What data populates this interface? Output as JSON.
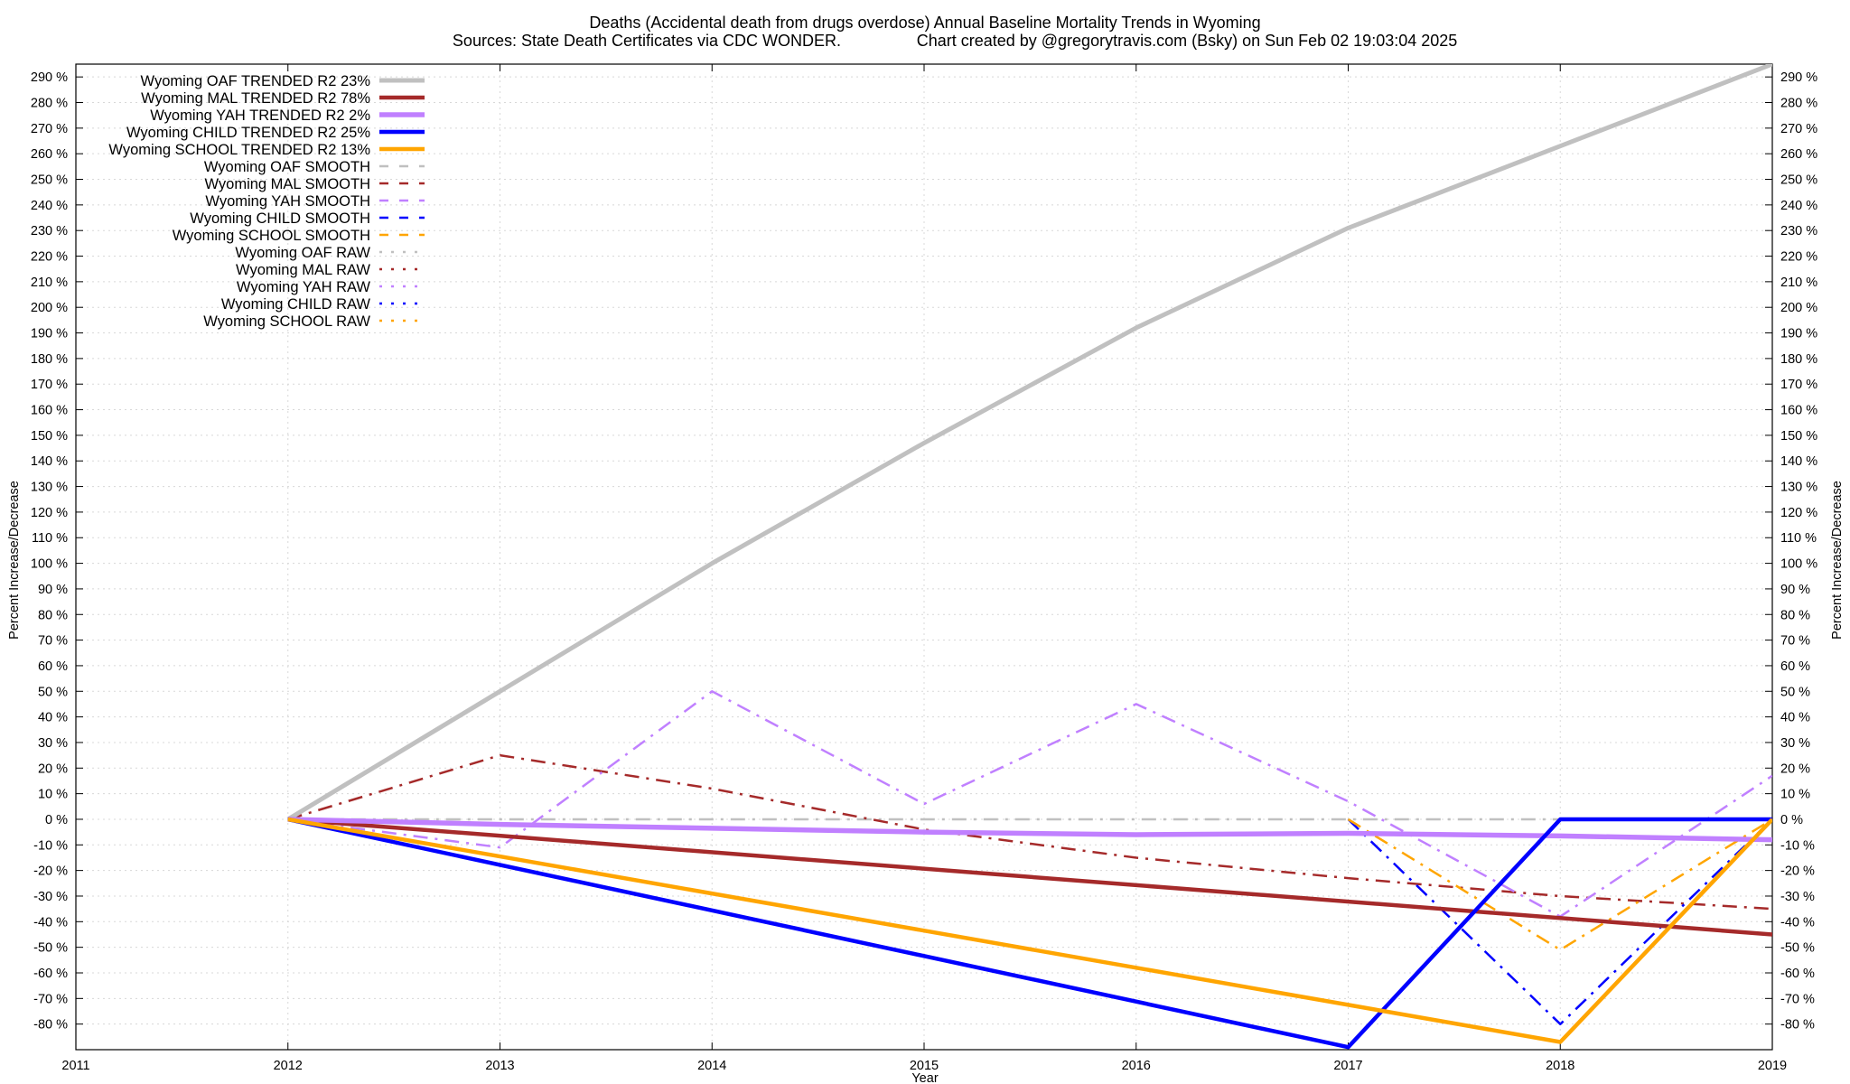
{
  "chart_data": {
    "type": "line",
    "title": "Deaths (Accidental death from drugs overdose)  Annual Baseline Mortality Trends in Wyoming",
    "subtitle_left": "Sources: State Death Certificates via CDC WONDER.",
    "subtitle_right": "Chart created by @gregorytravis.com (Bsky) on Sun Feb 02 19:03:04 2025",
    "xlabel": "Year",
    "ylabel": "Percent Increase/Decrease",
    "y2label": "Percent Increase/Decrease",
    "xlim": [
      2011,
      2019
    ],
    "ylim": [
      -90,
      295
    ],
    "x_ticks": [
      "2011",
      "2012",
      "2013",
      "2014",
      "2015",
      "2016",
      "2017",
      "2018",
      "2019"
    ],
    "y_ticks": [
      290,
      280,
      270,
      260,
      250,
      240,
      230,
      220,
      210,
      200,
      190,
      180,
      170,
      160,
      150,
      140,
      130,
      120,
      110,
      100,
      90,
      80,
      70,
      60,
      50,
      40,
      30,
      20,
      10,
      0,
      -10,
      -20,
      -30,
      -40,
      -50,
      -60,
      -70,
      -80
    ],
    "y_tick_suffix": " %",
    "grid": true,
    "legend_position": "top-left",
    "series": [
      {
        "name": "Wyoming OAF TRENDED R2  23%",
        "style": "solid",
        "color": "#c0c0c0",
        "width": 5,
        "x": [
          2012,
          2013,
          2014,
          2015,
          2016,
          2017,
          2018,
          2019
        ],
        "y": [
          0,
          50,
          100,
          147,
          192,
          231,
          263,
          295
        ]
      },
      {
        "name": "Wyoming MAL TRENDED R2  78%",
        "style": "solid",
        "color": "#a52a2a",
        "width": 4.5,
        "x": [
          2012,
          2019
        ],
        "y": [
          0,
          -45
        ]
      },
      {
        "name": "Wyoming YAH TRENDED R2   2%",
        "style": "solid",
        "color": "#c080ff",
        "width": 5.5,
        "x": [
          2012,
          2013,
          2014,
          2015,
          2016,
          2017,
          2018,
          2019
        ],
        "y": [
          0,
          -2,
          -3.5,
          -5,
          -6,
          -5.5,
          -6.5,
          -8
        ]
      },
      {
        "name": "Wyoming CHILD TRENDED R2  25%",
        "style": "solid",
        "color": "#0000ff",
        "width": 4.5,
        "x": [
          2012,
          2017,
          2018,
          2019
        ],
        "y": [
          0,
          -89,
          0,
          0
        ]
      },
      {
        "name": "Wyoming SCHOOL TRENDED R2  13%",
        "style": "solid",
        "color": "#ffa500",
        "width": 4.5,
        "x": [
          2012,
          2018,
          2019
        ],
        "y": [
          0,
          -87,
          0
        ]
      },
      {
        "name": "Wyoming OAF SMOOTH",
        "style": "dashdot",
        "color": "#c0c0c0",
        "width": 2.5,
        "x": [
          2012,
          2019
        ],
        "y": [
          0,
          0
        ]
      },
      {
        "name": "Wyoming MAL SMOOTH",
        "style": "dashdot",
        "color": "#a52a2a",
        "width": 2.5,
        "x": [
          2012,
          2013,
          2014,
          2015,
          2016,
          2017,
          2018,
          2019
        ],
        "y": [
          0,
          25,
          12,
          -4,
          -15,
          -23,
          -30,
          -35
        ]
      },
      {
        "name": "Wyoming YAH SMOOTH",
        "style": "dashdot",
        "color": "#c080ff",
        "width": 2.5,
        "x": [
          2012,
          2013,
          2014,
          2015,
          2016,
          2017,
          2018,
          2019
        ],
        "y": [
          0,
          -11,
          50,
          6,
          45,
          7,
          -38,
          17
        ]
      },
      {
        "name": "Wyoming CHILD SMOOTH",
        "style": "dashdot",
        "color": "#0000ff",
        "width": 2.5,
        "x": [
          2017,
          2018,
          2019
        ],
        "y": [
          0,
          -80,
          0
        ]
      },
      {
        "name": "Wyoming SCHOOL SMOOTH",
        "style": "dashdot",
        "color": "#ffa500",
        "width": 2.5,
        "x": [
          2017,
          2018,
          2019
        ],
        "y": [
          0,
          -51,
          0
        ]
      },
      {
        "name": "Wyoming OAF RAW",
        "style": "dotted",
        "color": "#c0c0c0",
        "width": 2.5,
        "x": [],
        "y": []
      },
      {
        "name": "Wyoming MAL RAW",
        "style": "dotted",
        "color": "#a52a2a",
        "width": 2.5,
        "x": [],
        "y": []
      },
      {
        "name": "Wyoming YAH RAW",
        "style": "dotted",
        "color": "#c080ff",
        "width": 2.5,
        "x": [],
        "y": []
      },
      {
        "name": "Wyoming CHILD RAW",
        "style": "dotted",
        "color": "#0000ff",
        "width": 2.5,
        "x": [],
        "y": []
      },
      {
        "name": "Wyoming SCHOOL RAW",
        "style": "dotted",
        "color": "#ffa500",
        "width": 2.5,
        "x": [],
        "y": []
      }
    ]
  }
}
